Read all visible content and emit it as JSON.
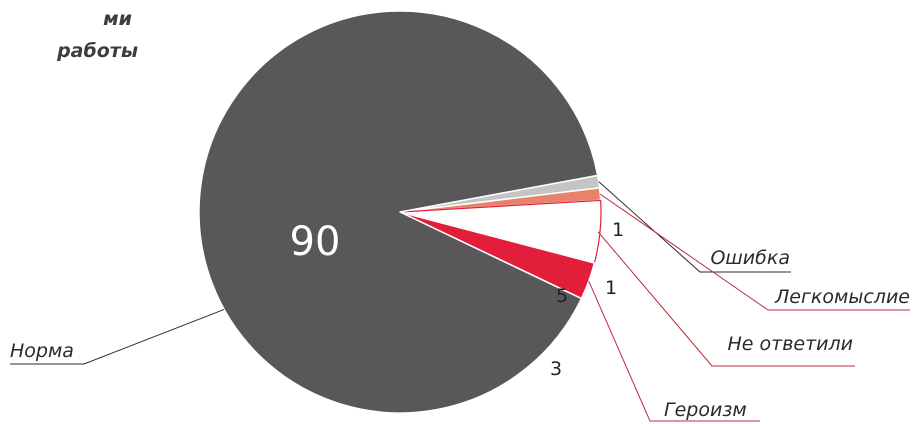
{
  "title_lines": [
    "ми",
    "работы"
  ],
  "chart_data": {
    "type": "pie",
    "title": "",
    "slices": [
      {
        "label": "Норма",
        "value": 90,
        "value_text": "90",
        "color": "#58585a"
      },
      {
        "label": "Ошибка",
        "value": 1,
        "value_text": "1",
        "color": "#c4c4c4"
      },
      {
        "label": "Легкомыслие",
        "value": 1,
        "value_text": "1",
        "color": "#e8836b"
      },
      {
        "label": "Не ответили",
        "value": 5,
        "value_text": "5",
        "color": "#ffffff"
      },
      {
        "label": "Героизм",
        "value": 3,
        "value_text": "3",
        "color": "#e31e3a"
      }
    ],
    "leader_colors": {
      "Ошибка": "#2b2b2b",
      "Легкомыслие": "#c0283a",
      "Не ответили": "#c0283a",
      "Героизм": "#c0283a",
      "Норма": "#2b2b2b"
    },
    "value_label_colors": {
      "Не ответили": "#d0283a"
    }
  }
}
